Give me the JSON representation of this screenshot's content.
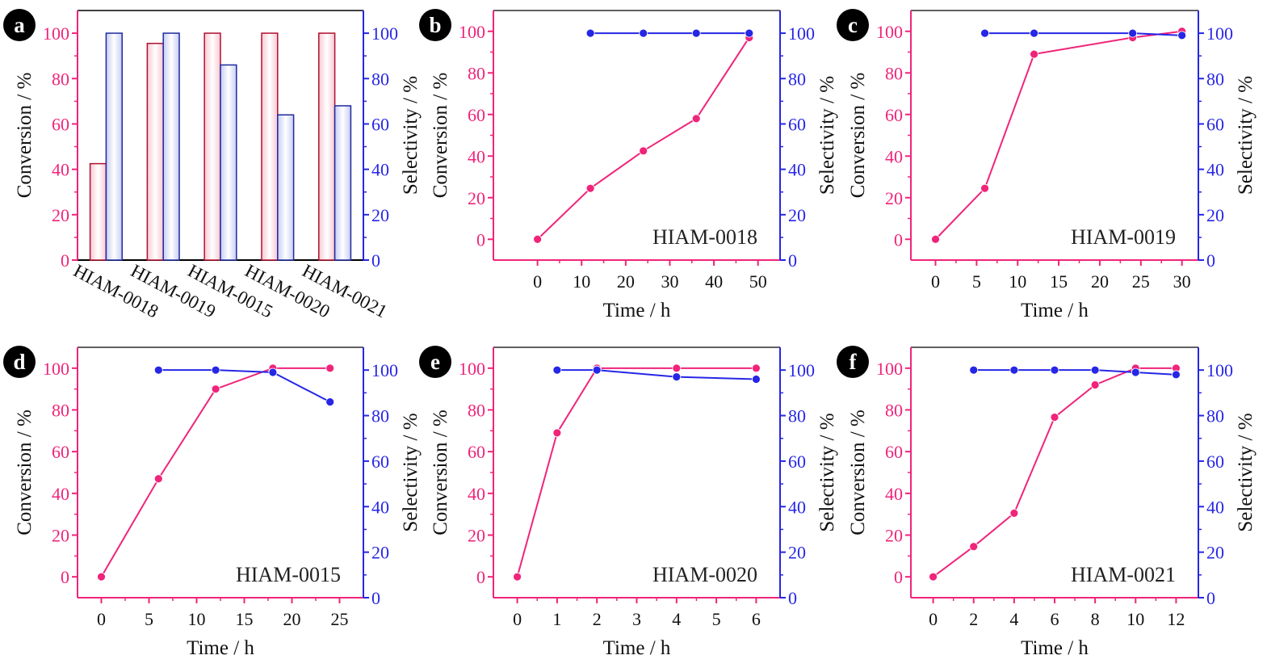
{
  "colors": {
    "conversion": "#f0247a",
    "selectivity": "#2626e6",
    "axis_text": "#111111",
    "bar_conv_fill": "#f9c8d3",
    "bar_conv_stroke": "#b0102f",
    "bar_sel_fill": "#c7ccf5",
    "bar_sel_stroke": "#1f2a9c"
  },
  "chart_data": [
    {
      "type": "bar",
      "panel": "a",
      "categories": [
        "HIAM-0018",
        "HIAM-0019",
        "HIAM-0015",
        "HIAM-0020",
        "HIAM-0021"
      ],
      "series": [
        {
          "name": "Conversion",
          "axis": "left",
          "values": [
            42.5,
            95.5,
            100,
            100,
            100
          ]
        },
        {
          "name": "Selectivity",
          "axis": "right",
          "values": [
            100,
            100,
            86,
            64,
            68
          ]
        }
      ],
      "ylabel_left": "Conversion / %",
      "ylabel_right": "Selectivity / %",
      "ylim": [
        0,
        110
      ],
      "yticks": [
        0,
        20,
        40,
        60,
        80,
        100
      ]
    },
    {
      "type": "line",
      "panel": "b",
      "label": "HIAM-0018",
      "xlabel": "Time / h",
      "ylabel_left": "Conversion / %",
      "ylabel_right": "Selectivity / %",
      "xlim": [
        -10,
        55
      ],
      "xticks": [
        0,
        10,
        20,
        30,
        40,
        50
      ],
      "ylim": [
        -10,
        110
      ],
      "yticks": [
        0,
        20,
        40,
        60,
        80,
        100
      ],
      "ylim_right": [
        0,
        110
      ],
      "yticks_right": [
        0,
        20,
        40,
        60,
        80,
        100
      ],
      "series": [
        {
          "name": "Conversion",
          "axis": "left",
          "x": [
            0,
            12,
            24,
            36,
            48
          ],
          "y": [
            0,
            24.5,
            42.5,
            58,
            97
          ]
        },
        {
          "name": "Selectivity",
          "axis": "right",
          "x": [
            12,
            24,
            36,
            48
          ],
          "y": [
            100,
            100,
            100,
            100
          ]
        }
      ]
    },
    {
      "type": "line",
      "panel": "c",
      "label": "HIAM-0019",
      "xlabel": "Time / h",
      "ylabel_left": "Conversion / %",
      "ylabel_right": "Selectivity / %",
      "xlim": [
        -3,
        32
      ],
      "xticks": [
        0,
        5,
        10,
        15,
        20,
        25,
        30
      ],
      "ylim": [
        -10,
        110
      ],
      "yticks": [
        0,
        20,
        40,
        60,
        80,
        100
      ],
      "ylim_right": [
        0,
        110
      ],
      "yticks_right": [
        0,
        20,
        40,
        60,
        80,
        100
      ],
      "series": [
        {
          "name": "Conversion",
          "axis": "left",
          "x": [
            0,
            6,
            12,
            24,
            30
          ],
          "y": [
            0,
            24.5,
            89,
            97,
            100
          ]
        },
        {
          "name": "Selectivity",
          "axis": "right",
          "x": [
            6,
            12,
            24,
            30
          ],
          "y": [
            100,
            100,
            100,
            99
          ]
        }
      ]
    },
    {
      "type": "line",
      "panel": "d",
      "label": "HIAM-0015",
      "xlabel": "Time / h",
      "ylabel_left": "Conversion / %",
      "ylabel_right": "Selectivity / %",
      "xlim": [
        -2.5,
        27.5
      ],
      "xticks": [
        0,
        5,
        10,
        15,
        20,
        25
      ],
      "ylim": [
        -10,
        110
      ],
      "yticks": [
        0,
        20,
        40,
        60,
        80,
        100
      ],
      "ylim_right": [
        0,
        110
      ],
      "yticks_right": [
        0,
        20,
        40,
        60,
        80,
        100
      ],
      "series": [
        {
          "name": "Conversion",
          "axis": "left",
          "x": [
            0,
            6,
            12,
            18,
            24
          ],
          "y": [
            0,
            47,
            90,
            100,
            100
          ]
        },
        {
          "name": "Selectivity",
          "axis": "right",
          "x": [
            6,
            12,
            18,
            24
          ],
          "y": [
            100,
            100,
            99,
            86
          ]
        }
      ]
    },
    {
      "type": "line",
      "panel": "e",
      "label": "HIAM-0020",
      "xlabel": "Time / h",
      "ylabel_left": "Conversion / %",
      "ylabel_right": "Selectivity / %",
      "xlim": [
        -0.6,
        6.6
      ],
      "xticks": [
        0,
        1,
        2,
        3,
        4,
        5,
        6
      ],
      "ylim": [
        -10,
        110
      ],
      "yticks": [
        0,
        20,
        40,
        60,
        80,
        100
      ],
      "ylim_right": [
        0,
        110
      ],
      "yticks_right": [
        0,
        20,
        40,
        60,
        80,
        100
      ],
      "series": [
        {
          "name": "Conversion",
          "axis": "left",
          "x": [
            0,
            1,
            2,
            4,
            6
          ],
          "y": [
            0,
            69,
            100,
            100,
            100
          ]
        },
        {
          "name": "Selectivity",
          "axis": "right",
          "x": [
            1,
            2,
            4,
            6
          ],
          "y": [
            100,
            100,
            97,
            96
          ]
        }
      ]
    },
    {
      "type": "line",
      "panel": "f",
      "label": "HIAM-0021",
      "xlabel": "Time / h",
      "ylabel_left": "Conversion / %",
      "ylabel_right": "Selectivity / %",
      "xlim": [
        -1.1,
        13.1
      ],
      "xticks": [
        0,
        2,
        4,
        6,
        8,
        10,
        12
      ],
      "ylim": [
        -10,
        110
      ],
      "yticks": [
        0,
        20,
        40,
        60,
        80,
        100
      ],
      "ylim_right": [
        0,
        110
      ],
      "yticks_right": [
        0,
        20,
        40,
        60,
        80,
        100
      ],
      "series": [
        {
          "name": "Conversion",
          "axis": "left",
          "x": [
            0,
            2,
            4,
            6,
            8,
            10,
            12
          ],
          "y": [
            0,
            14.5,
            30.5,
            76.5,
            92,
            100,
            100
          ]
        },
        {
          "name": "Selectivity",
          "axis": "right",
          "x": [
            2,
            4,
            6,
            8,
            10,
            12
          ],
          "y": [
            100,
            100,
            100,
            100,
            99,
            98
          ]
        }
      ]
    }
  ]
}
